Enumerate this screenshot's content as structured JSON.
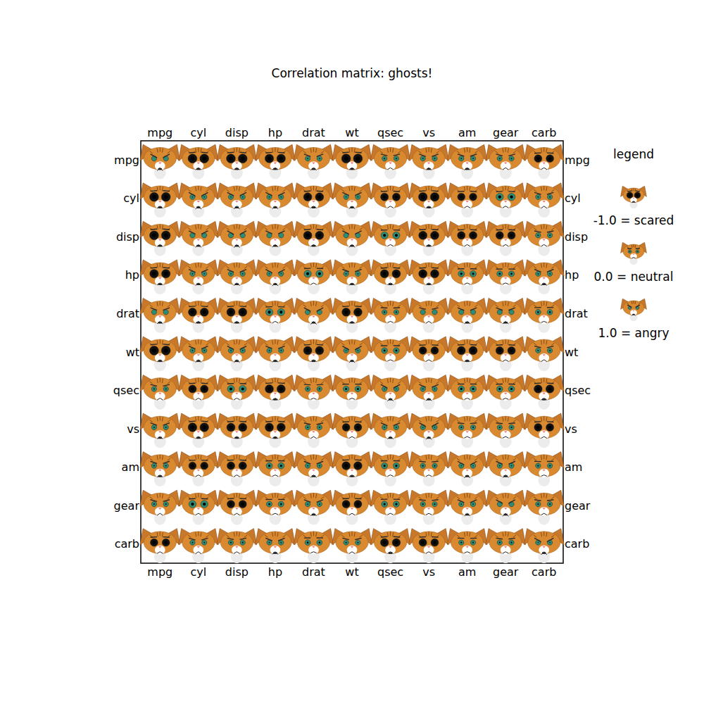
{
  "chart_data": {
    "type": "heatmap",
    "title": "Correlation matrix: ghosts!",
    "x": [
      "mpg",
      "cyl",
      "disp",
      "hp",
      "drat",
      "wt",
      "qsec",
      "vs",
      "am",
      "gear",
      "carb"
    ],
    "y": [
      "mpg",
      "cyl",
      "disp",
      "hp",
      "drat",
      "wt",
      "qsec",
      "vs",
      "am",
      "gear",
      "carb"
    ],
    "cells": [
      [
        1.0,
        -0.85,
        -0.85,
        -0.78,
        0.68,
        -0.87,
        0.42,
        0.66,
        0.6,
        0.48,
        -0.55
      ],
      [
        -0.85,
        1.0,
        0.9,
        0.83,
        -0.7,
        0.78,
        -0.59,
        -0.81,
        -0.52,
        -0.49,
        0.53
      ],
      [
        -0.85,
        0.9,
        1.0,
        0.79,
        -0.71,
        0.89,
        -0.43,
        -0.71,
        -0.59,
        -0.56,
        0.39
      ],
      [
        -0.78,
        0.83,
        0.79,
        1.0,
        -0.45,
        0.66,
        -0.71,
        -0.72,
        -0.24,
        -0.13,
        0.75
      ],
      [
        0.68,
        -0.7,
        -0.71,
        -0.45,
        1.0,
        -0.71,
        0.09,
        0.44,
        0.71,
        0.7,
        -0.09
      ],
      [
        -0.87,
        0.78,
        0.89,
        0.66,
        -0.71,
        1.0,
        -0.17,
        -0.55,
        -0.69,
        -0.58,
        0.43
      ],
      [
        0.42,
        -0.59,
        -0.43,
        -0.71,
        0.09,
        -0.17,
        1.0,
        0.74,
        -0.23,
        -0.21,
        -0.66
      ],
      [
        0.66,
        -0.81,
        -0.71,
        -0.72,
        0.44,
        -0.55,
        0.74,
        1.0,
        0.17,
        0.21,
        -0.57
      ],
      [
        0.6,
        -0.52,
        -0.59,
        -0.24,
        0.71,
        -0.69,
        -0.23,
        0.17,
        1.0,
        0.79,
        0.06
      ],
      [
        0.48,
        -0.49,
        -0.56,
        -0.13,
        0.7,
        -0.58,
        -0.21,
        0.21,
        0.79,
        1.0,
        0.27
      ],
      [
        -0.55,
        0.53,
        0.39,
        0.75,
        -0.09,
        0.43,
        -0.66,
        -0.57,
        0.06,
        0.27,
        1.0
      ]
    ],
    "color_title": "legend",
    "color_range": [
      -1.0,
      1.0
    ],
    "color_ticks": [
      {
        "value": -1.0,
        "label": "-1.0 = scared"
      },
      {
        "value": 0.0,
        "label": "0.0 = neutral"
      },
      {
        "value": 1.0,
        "label": "1.0 = angry"
      }
    ]
  }
}
